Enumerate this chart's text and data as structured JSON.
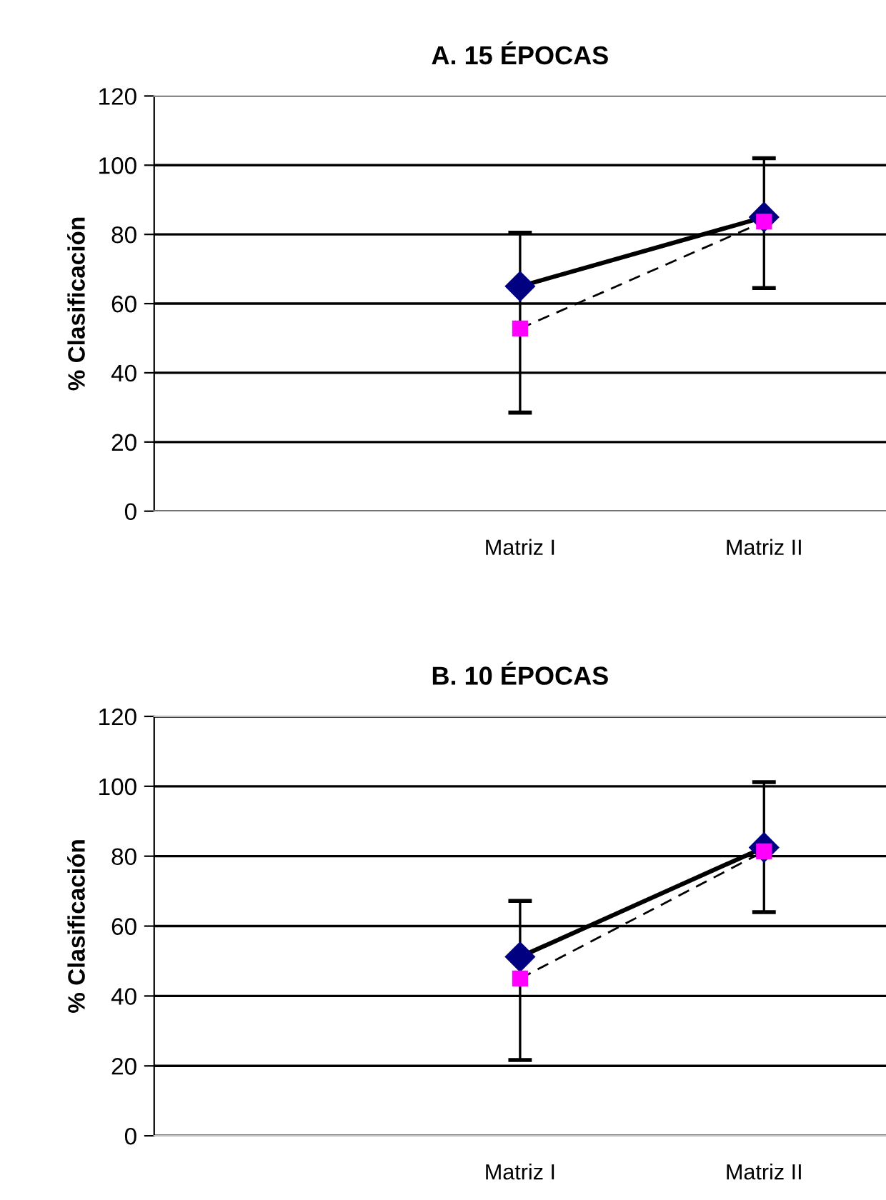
{
  "chart_data": [
    {
      "type": "line",
      "title": "A. 15 ÉPOCAS",
      "ylabel": "% Clasificación",
      "categories": [
        null,
        "Matriz I",
        "Matriz II"
      ],
      "ylim": [
        0,
        120
      ],
      "yticks": [
        0,
        20,
        40,
        60,
        80,
        100,
        120
      ],
      "grid": "y",
      "legend": false,
      "series": [
        {
          "color": "#000080",
          "marker": "diamond",
          "line_style": "solid",
          "values": [
            null,
            65,
            85
          ]
        },
        {
          "color": "#ff00ff",
          "marker": "square",
          "line_style": "dashed",
          "values": [
            null,
            52.8,
            83.7
          ],
          "errors": [
            null,
            [
              28.5,
              80.5
            ],
            [
              64.5,
              102
            ]
          ]
        }
      ]
    },
    {
      "type": "line",
      "title": "B. 10 ÉPOCAS",
      "ylabel": "% Clasificación",
      "categories": [
        null,
        "Matriz I",
        "Matriz II"
      ],
      "ylim": [
        0,
        120
      ],
      "yticks": [
        0,
        20,
        40,
        60,
        80,
        100,
        120
      ],
      "grid": "y",
      "legend": false,
      "series": [
        {
          "color": "#000080",
          "marker": "diamond",
          "line_style": "solid",
          "values": [
            null,
            51.2,
            82.5
          ]
        },
        {
          "color": "#ff00ff",
          "marker": "square",
          "line_style": "dashed",
          "values": [
            null,
            45,
            81.4
          ],
          "errors": [
            null,
            [
              21.7,
              67.2
            ],
            [
              64,
              101.2
            ]
          ]
        }
      ]
    }
  ]
}
